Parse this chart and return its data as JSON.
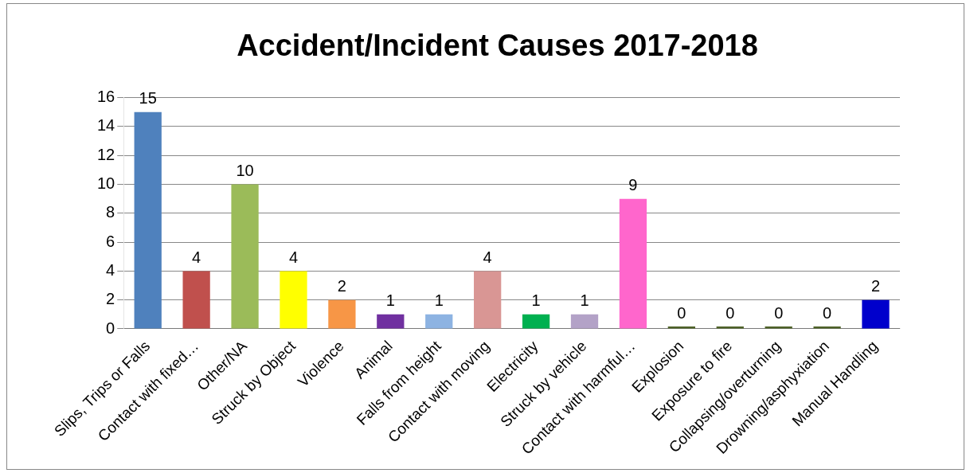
{
  "chart_data": {
    "type": "bar",
    "title": "Accident/Incident Causes 2017-2018",
    "categories": [
      "Slips, Trips or Falls",
      "Contact with fixed…",
      "Other/NA",
      "Struck by Object",
      "Violence",
      "Animal",
      "Falls from height",
      "Contact with moving",
      "Electricity",
      "Struck by vehicle",
      "Contact with harmful…",
      "Explosion",
      "Exposure to fire",
      "Collapsing/overturning",
      "Drowning/asphyxiation",
      "Manual Handling"
    ],
    "values": [
      15,
      4,
      10,
      4,
      2,
      1,
      1,
      4,
      1,
      1,
      9,
      0,
      0,
      0,
      0,
      2
    ],
    "colors": [
      "#4f81bd",
      "#c0504d",
      "#9bbb59",
      "#ffff00",
      "#f79646",
      "#7030a0",
      "#8db3e2",
      "#d99694",
      "#00b050",
      "#b3a2c7",
      "#ff66cc",
      "#4f6228",
      "#4f6228",
      "#4f6228",
      "#4f6228",
      "#0000cc"
    ],
    "ylim": [
      0,
      16
    ],
    "yticks": [
      0,
      2,
      4,
      6,
      8,
      10,
      12,
      14,
      16
    ],
    "grid": "y",
    "data_labels": true,
    "legend": false
  }
}
